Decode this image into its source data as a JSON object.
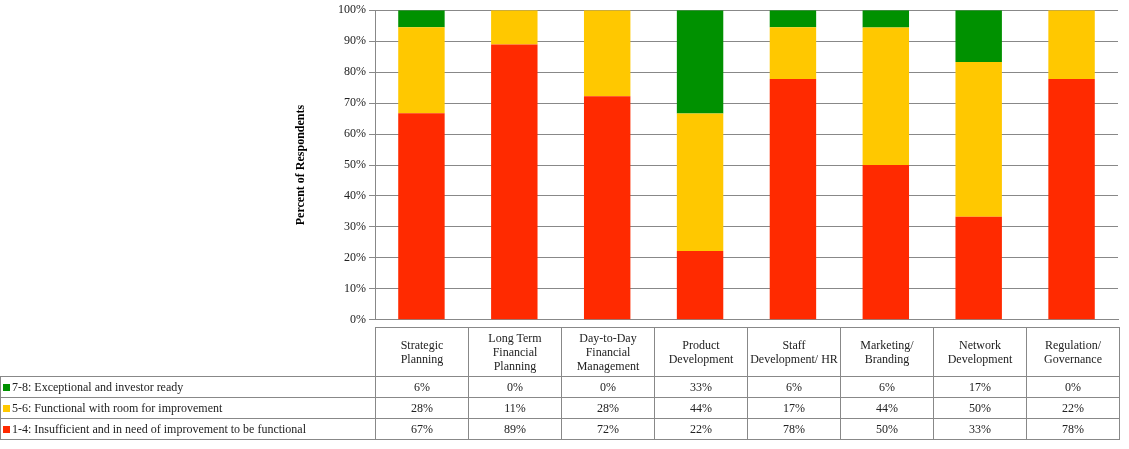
{
  "chart_data": {
    "type": "bar",
    "stacked": true,
    "ylabel": "Percent of Respondents",
    "categories": [
      "Strategic Planning",
      "Long Term Financial Planning",
      "Day-to-Day Financial Management",
      "Product Development",
      "Staff Development/ HR",
      "Marketing/ Branding",
      "Network Development",
      "Regulation/ Governance"
    ],
    "series": [
      {
        "name": "1-4: Insufficient and in need of improvement to be functional",
        "color": "#ff2a00",
        "values": [
          66.7,
          88.9,
          72.2,
          22.2,
          77.8,
          50,
          33.3,
          77.8
        ],
        "value_labels": [
          "67%",
          "89%",
          "72%",
          "22%",
          "78%",
          "50%",
          "33%",
          "78%"
        ]
      },
      {
        "name": "5-6: Functional with room for improvement",
        "color": "#ffc800",
        "values": [
          27.8,
          11.1,
          27.8,
          44.4,
          16.7,
          44.4,
          50,
          22.2
        ],
        "value_labels": [
          "28%",
          "11%",
          "28%",
          "44%",
          "17%",
          "44%",
          "50%",
          "22%"
        ]
      },
      {
        "name": "7-8: Exceptional and investor ready",
        "color": "#009100",
        "values": [
          5.5,
          0,
          0,
          33.4,
          5.5,
          5.6,
          16.7,
          0
        ],
        "value_labels": [
          "6%",
          "0%",
          "0%",
          "33%",
          "6%",
          "6%",
          "17%",
          "0%"
        ]
      }
    ],
    "ylim": [
      0,
      100
    ],
    "yticks": [
      {
        "value": 0,
        "label": "0%"
      },
      {
        "value": 10,
        "label": "10%"
      },
      {
        "value": 20,
        "label": "20%"
      },
      {
        "value": 30,
        "label": "30%"
      },
      {
        "value": 40,
        "label": "40%"
      },
      {
        "value": 50,
        "label": "50%"
      },
      {
        "value": 60,
        "label": "60%"
      },
      {
        "value": 70,
        "label": "70%"
      },
      {
        "value": 80,
        "label": "80%"
      },
      {
        "value": 90,
        "label": "90%"
      },
      {
        "value": 100,
        "label": "100%"
      }
    ],
    "grid": "y",
    "legend": "bottom"
  }
}
